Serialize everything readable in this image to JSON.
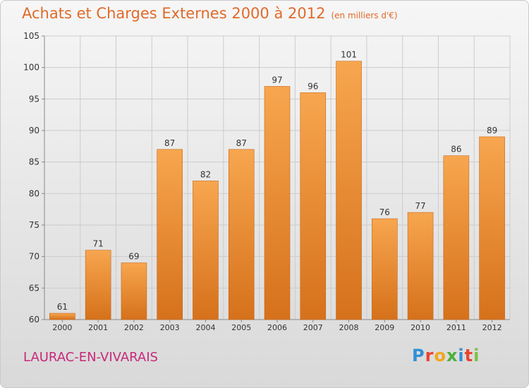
{
  "title": "Achats et Charges Externes 2000 à 2012",
  "unit": "(en milliers d'€)",
  "location": "LAURAC-EN-VIVARAIS",
  "logo": {
    "letters": [
      "P",
      "r",
      "o",
      "x",
      "i",
      "t",
      "i"
    ],
    "colors": [
      "#2f8fd6",
      "#e8432e",
      "#f2a51f",
      "#4caf3b",
      "#2f8fd6",
      "#e8432e",
      "#7cc242"
    ]
  },
  "colors": {
    "bar_top": "#f7a64f",
    "bar_bottom": "#d6711b",
    "grid": "#cccccc",
    "label": "#333333"
  },
  "chart_data": {
    "type": "bar",
    "categories": [
      "2000",
      "2001",
      "2002",
      "2003",
      "2004",
      "2005",
      "2006",
      "2007",
      "2008",
      "2009",
      "2010",
      "2011",
      "2012"
    ],
    "values": [
      61,
      71,
      69,
      87,
      82,
      87,
      97,
      96,
      101,
      76,
      77,
      86,
      89
    ],
    "yticks": [
      60,
      65,
      70,
      75,
      80,
      85,
      90,
      95,
      100,
      105
    ],
    "ylim": [
      60,
      105
    ],
    "grid": true,
    "legend": "none"
  }
}
